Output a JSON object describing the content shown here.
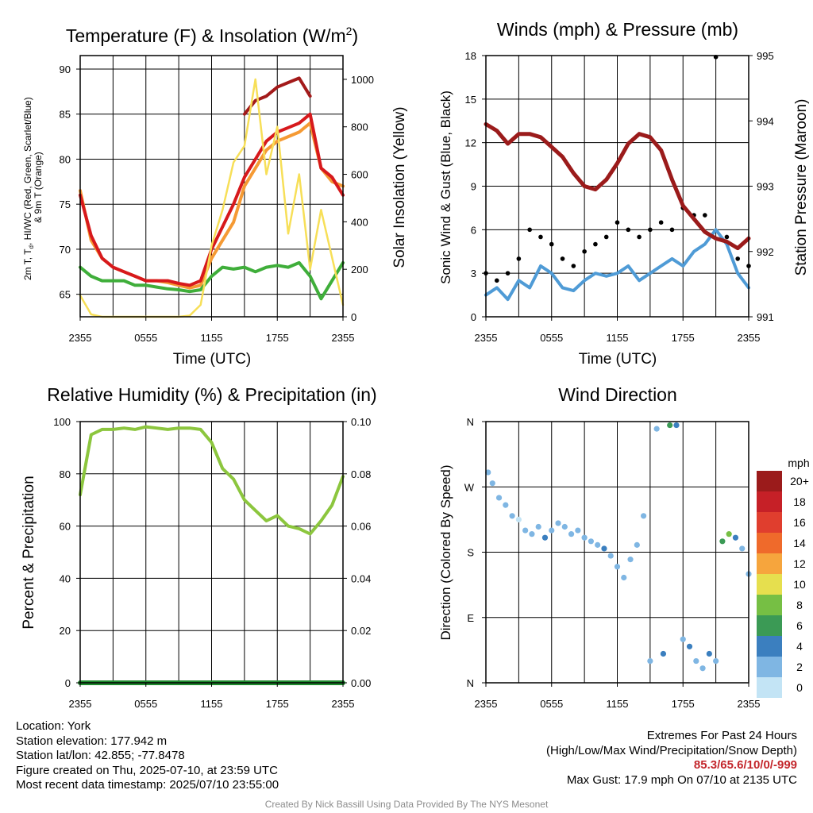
{
  "colors": {
    "temp_red": "#d7191c",
    "heat_index_scarlet": "#e0301e",
    "wind_chill_blue": "#2c7bb6",
    "temp_9m_orange": "#f59a34",
    "dewpoint_green": "#3fae3a",
    "insolation_yellow": "#f7df58",
    "max_temp_dark_red": "#a31a1a",
    "sonic_wind_blue": "#4f9bd6",
    "gust_black": "#000000",
    "pressure_maroon": "#9b1b1b",
    "rh_green": "#8cc63e",
    "precip_green": "#1f8a2e",
    "extremes_red": "#c3262b"
  },
  "chart_data": [
    {
      "id": "temperature",
      "type": "line",
      "title_main": "Temperature (F) & Insolation (W/m",
      "title_sup": "2",
      "title_close": ")",
      "xlabel": "Time (UTC)",
      "ylabel_left_lines": [
        "2m T, T",
        "d",
        ", HI/WC (Red, Green, Scarlet/Blue)",
        "& 9m T (Orange)"
      ],
      "ylabel_right": "Solar Insolation (Yellow)",
      "x_ticks": [
        "2355",
        "0555",
        "1155",
        "1755",
        "2355"
      ],
      "ylim": [
        62.5,
        91.5
      ],
      "y_ticks": [
        65,
        70,
        75,
        80,
        85,
        90
      ],
      "ylim_right": [
        0,
        1100
      ],
      "y_ticks_right": [
        0,
        200,
        400,
        600,
        800,
        1000
      ],
      "x": [
        0,
        1,
        2,
        3,
        4,
        5,
        6,
        7,
        8,
        9,
        10,
        11,
        12,
        13,
        14,
        15,
        16,
        17,
        18,
        19,
        20,
        21,
        22,
        23,
        24
      ],
      "series": [
        {
          "key": "temp_9m",
          "axis": "left",
          "color_key": "temp_9m_orange",
          "values": [
            76.5,
            71,
            69,
            68,
            67.5,
            67,
            66.5,
            66.5,
            66.3,
            66,
            65.7,
            66,
            69,
            71,
            73,
            77,
            79,
            81,
            82,
            82.5,
            83,
            84,
            79,
            77.5,
            77
          ]
        },
        {
          "key": "temp_2m",
          "axis": "left",
          "color_key": "temp_red",
          "values": [
            76,
            71.5,
            69,
            68,
            67.5,
            67,
            66.5,
            66.5,
            66.5,
            66.2,
            66,
            66.5,
            70,
            72.5,
            75,
            78,
            80,
            82,
            83,
            83.5,
            84,
            85,
            79,
            78,
            76
          ]
        },
        {
          "key": "temp_max",
          "axis": "left",
          "color_key": "max_temp_dark_red",
          "values": [
            null,
            null,
            null,
            null,
            null,
            null,
            null,
            null,
            null,
            null,
            null,
            null,
            null,
            null,
            null,
            85,
            86.5,
            87,
            88,
            88.5,
            89,
            87,
            null,
            null,
            null
          ]
        },
        {
          "key": "dewpoint",
          "axis": "left",
          "color_key": "dewpoint_green",
          "values": [
            68,
            67,
            66.5,
            66.5,
            66.5,
            66,
            66,
            65.8,
            65.6,
            65.5,
            65.3,
            65.5,
            67,
            68,
            67.8,
            68,
            67.5,
            68,
            68.2,
            68,
            68.5,
            67,
            64.5,
            66.5,
            68.5
          ]
        },
        {
          "key": "insolation",
          "axis": "right",
          "color_key": "insolation_yellow",
          "values": [
            90,
            10,
            0,
            0,
            0,
            0,
            0,
            0,
            0,
            0,
            5,
            50,
            300,
            450,
            650,
            720,
            1000,
            600,
            800,
            350,
            600,
            200,
            450,
            250,
            50
          ]
        }
      ]
    },
    {
      "id": "winds",
      "type": "line",
      "title": "Winds (mph) & Pressure (mb)",
      "xlabel": "Time (UTC)",
      "ylabel_left": "Sonic Wind & Gust (Blue, Black)",
      "ylabel_right": "Station Pressure (Maroon)",
      "x_ticks": [
        "2355",
        "0555",
        "1155",
        "1755",
        "2355"
      ],
      "ylim": [
        0,
        18
      ],
      "y_ticks": [
        0,
        3,
        6,
        9,
        12,
        15,
        18
      ],
      "ylim_right": [
        991,
        995
      ],
      "y_ticks_right": [
        991,
        992,
        993,
        994,
        995
      ],
      "x": [
        0,
        1,
        2,
        3,
        4,
        5,
        6,
        7,
        8,
        9,
        10,
        11,
        12,
        13,
        14,
        15,
        16,
        17,
        18,
        19,
        20,
        21,
        22,
        23,
        24
      ],
      "series": [
        {
          "key": "sonic_wind",
          "axis": "left",
          "color_key": "sonic_wind_blue",
          "values": [
            1.5,
            2,
            1.2,
            2.5,
            2,
            3.5,
            3,
            2,
            1.8,
            2.5,
            3,
            2.8,
            3,
            3.5,
            2.5,
            3,
            3.5,
            4,
            3.5,
            4.5,
            5,
            6,
            5,
            3,
            2
          ]
        },
        {
          "key": "gust",
          "axis": "left",
          "color_key": "gust_black",
          "values": [
            3,
            2.5,
            3,
            4,
            6,
            5.5,
            5,
            4,
            3.5,
            4.5,
            5,
            5.5,
            6.5,
            6,
            5.5,
            6,
            6.5,
            6,
            7.5,
            7,
            7,
            17.9,
            5.5,
            4,
            3.5
          ]
        },
        {
          "key": "pressure",
          "axis": "right",
          "color_key": "pressure_maroon",
          "values": [
            993.95,
            993.85,
            993.65,
            993.8,
            993.8,
            993.75,
            993.6,
            993.45,
            993.2,
            993.0,
            992.95,
            993.1,
            993.35,
            993.65,
            993.8,
            993.75,
            993.55,
            993.1,
            992.7,
            992.5,
            992.3,
            992.2,
            992.15,
            992.05,
            992.2
          ]
        }
      ]
    },
    {
      "id": "humidity",
      "type": "line",
      "title": "Relative Humidity (%) & Precipitation (in)",
      "xlabel": "",
      "ylabel_left": "Percent & Precipitation",
      "x_ticks": [
        "2355",
        "0555",
        "1155",
        "1755",
        "2355"
      ],
      "ylim": [
        0,
        100
      ],
      "y_ticks": [
        0,
        20,
        40,
        60,
        80,
        100
      ],
      "ylim_right": [
        0,
        0.1
      ],
      "y_ticks_right": [
        "0.00",
        "0.02",
        "0.04",
        "0.06",
        "0.08",
        "0.10"
      ],
      "x": [
        0,
        1,
        2,
        3,
        4,
        5,
        6,
        7,
        8,
        9,
        10,
        11,
        12,
        13,
        14,
        15,
        16,
        17,
        18,
        19,
        20,
        21,
        22,
        23,
        24
      ],
      "series": [
        {
          "key": "rh",
          "axis": "left",
          "color_key": "rh_green",
          "values": [
            72,
            95,
            97,
            97,
            97.5,
            97,
            98,
            97.5,
            97,
            97.5,
            97.5,
            97,
            92,
            82,
            78,
            70,
            66,
            62,
            64,
            60,
            59,
            57,
            62,
            68,
            79
          ]
        },
        {
          "key": "precip",
          "axis": "right",
          "color_key": "precip_green",
          "values": [
            0,
            0,
            0,
            0,
            0,
            0,
            0,
            0,
            0,
            0,
            0,
            0,
            0,
            0,
            0,
            0,
            0,
            0,
            0,
            0,
            0,
            0,
            0,
            0,
            0
          ]
        }
      ]
    },
    {
      "id": "direction",
      "type": "scatter",
      "title": "Wind Direction",
      "xlabel": "",
      "ylabel_left": "Direction (Colored By Speed)",
      "x_ticks": [
        "2355",
        "0555",
        "1155",
        "1755",
        "2355"
      ],
      "y_ticks": [
        "N",
        "E",
        "S",
        "W",
        "N"
      ],
      "ylim": [
        0,
        360
      ],
      "colorbar": {
        "unit": "mph",
        "labels": [
          "0",
          "2",
          "4",
          "6",
          "8",
          "10",
          "12",
          "14",
          "16",
          "18",
          "20+"
        ],
        "colors": [
          "#c3e4f5",
          "#7fb6e3",
          "#3b7fbf",
          "#3b9a55",
          "#76bf44",
          "#e6df4e",
          "#f6a53d",
          "#ef6a2b",
          "#e03e2e",
          "#c62027",
          "#9b1b1b"
        ]
      },
      "points": [
        {
          "x": 0.2,
          "dir": 290,
          "speed": 2
        },
        {
          "x": 0.6,
          "dir": 275,
          "speed": 3
        },
        {
          "x": 1.2,
          "dir": 255,
          "speed": 2
        },
        {
          "x": 1.8,
          "dir": 245,
          "speed": 3
        },
        {
          "x": 2.4,
          "dir": 230,
          "speed": 2
        },
        {
          "x": 3.0,
          "dir": 225,
          "speed": 1
        },
        {
          "x": 3.6,
          "dir": 210,
          "speed": 3
        },
        {
          "x": 4.2,
          "dir": 205,
          "speed": 2
        },
        {
          "x": 4.8,
          "dir": 215,
          "speed": 3
        },
        {
          "x": 5.4,
          "dir": 200,
          "speed": 4
        },
        {
          "x": 6.0,
          "dir": 210,
          "speed": 3
        },
        {
          "x": 6.6,
          "dir": 220,
          "speed": 2
        },
        {
          "x": 7.2,
          "dir": 215,
          "speed": 3
        },
        {
          "x": 7.8,
          "dir": 205,
          "speed": 2
        },
        {
          "x": 8.4,
          "dir": 210,
          "speed": 3
        },
        {
          "x": 9.0,
          "dir": 200,
          "speed": 2
        },
        {
          "x": 9.6,
          "dir": 195,
          "speed": 3
        },
        {
          "x": 10.2,
          "dir": 190,
          "speed": 2
        },
        {
          "x": 10.8,
          "dir": 185,
          "speed": 4
        },
        {
          "x": 11.4,
          "dir": 175,
          "speed": 3
        },
        {
          "x": 12.0,
          "dir": 160,
          "speed": 2
        },
        {
          "x": 12.6,
          "dir": 145,
          "speed": 3
        },
        {
          "x": 13.2,
          "dir": 170,
          "speed": 2
        },
        {
          "x": 13.8,
          "dir": 190,
          "speed": 3
        },
        {
          "x": 14.4,
          "dir": 230,
          "speed": 2
        },
        {
          "x": 15.0,
          "dir": 30,
          "speed": 2
        },
        {
          "x": 15.6,
          "dir": 350,
          "speed": 3
        },
        {
          "x": 16.2,
          "dir": 40,
          "speed": 4
        },
        {
          "x": 16.8,
          "dir": 355,
          "speed": 6
        },
        {
          "x": 17.4,
          "dir": 355,
          "speed": 4
        },
        {
          "x": 18.0,
          "dir": 60,
          "speed": 3
        },
        {
          "x": 18.6,
          "dir": 50,
          "speed": 4
        },
        {
          "x": 19.2,
          "dir": 30,
          "speed": 2
        },
        {
          "x": 19.8,
          "dir": 20,
          "speed": 3
        },
        {
          "x": 20.4,
          "dir": 40,
          "speed": 4
        },
        {
          "x": 21.0,
          "dir": 30,
          "speed": 2
        },
        {
          "x": 21.6,
          "dir": 195,
          "speed": 7
        },
        {
          "x": 22.2,
          "dir": 205,
          "speed": 9
        },
        {
          "x": 22.8,
          "dir": 200,
          "speed": 4
        },
        {
          "x": 23.4,
          "dir": 185,
          "speed": 3
        },
        {
          "x": 24.0,
          "dir": 150,
          "speed": 2
        }
      ]
    }
  ],
  "info_left": [
    "Location: York",
    "Station elevation: 177.942 m",
    "Station lat/lon: 42.855; -77.8478",
    "Figure created on Thu, 2025-07-10, at 23:59 UTC",
    "Most recent data timestamp: 2025/07/10 23:55:00"
  ],
  "info_right": {
    "heading": "Extremes For Past 24 Hours",
    "fields": "(High/Low/Max Wind/Precipitation/Snow Depth)",
    "values": "85.3/65.6/10/0/-999",
    "max_gust": "Max Gust: 17.9 mph On 07/10 at 2135 UTC"
  },
  "credit": "Created By Nick Bassill Using Data Provided By The NYS Mesonet"
}
